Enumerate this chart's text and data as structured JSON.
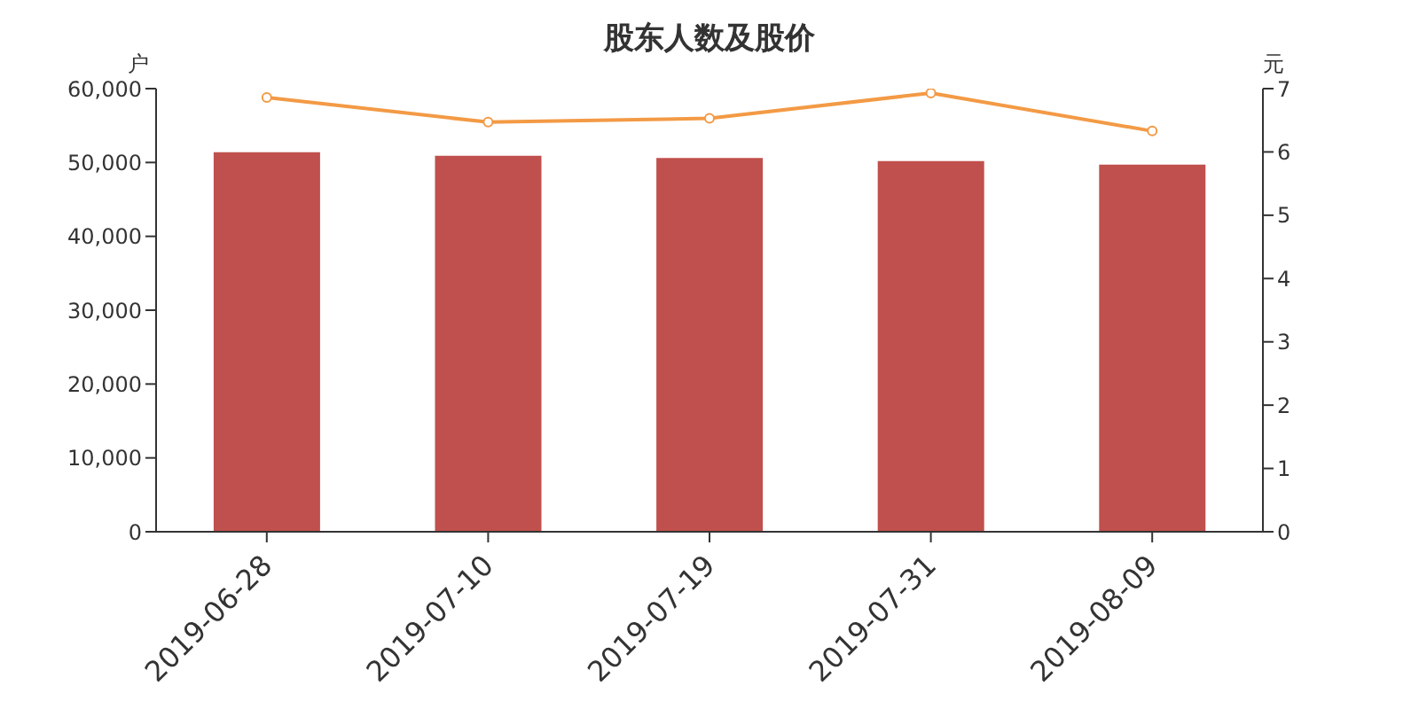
{
  "chart_data": {
    "type": "bar",
    "title": "股东人数及股价",
    "ylabel": "户",
    "y2label": "元",
    "categories": [
      "2019-06-28",
      "2019-07-10",
      "2019-07-19",
      "2019-07-31",
      "2019-08-09"
    ],
    "series": [
      {
        "color": "#c0504d",
        "values": [
          51400,
          50900,
          50600,
          50200,
          49700
        ]
      },
      {
        "type": "line",
        "axis": "y2",
        "color": "#f39a45",
        "values": [
          6.86,
          6.47,
          6.53,
          6.93,
          6.33
        ]
      }
    ],
    "ylim": [
      0,
      60000
    ],
    "yticks": [
      0,
      {
        "value": 10000,
        "label": "10,000"
      },
      {
        "value": 20000,
        "label": "20,000"
      },
      {
        "value": 30000,
        "label": "30,000"
      },
      {
        "value": 40000,
        "label": "40,000"
      },
      {
        "value": 50000,
        "label": "50,000"
      },
      {
        "value": 60000,
        "label": "60,000"
      }
    ],
    "y2lim": [
      0,
      7
    ],
    "y2ticks": [
      0,
      1,
      2,
      3,
      4,
      5,
      6,
      7
    ],
    "grid": false,
    "legend": false,
    "marker": "circle",
    "line_style": "solid"
  }
}
